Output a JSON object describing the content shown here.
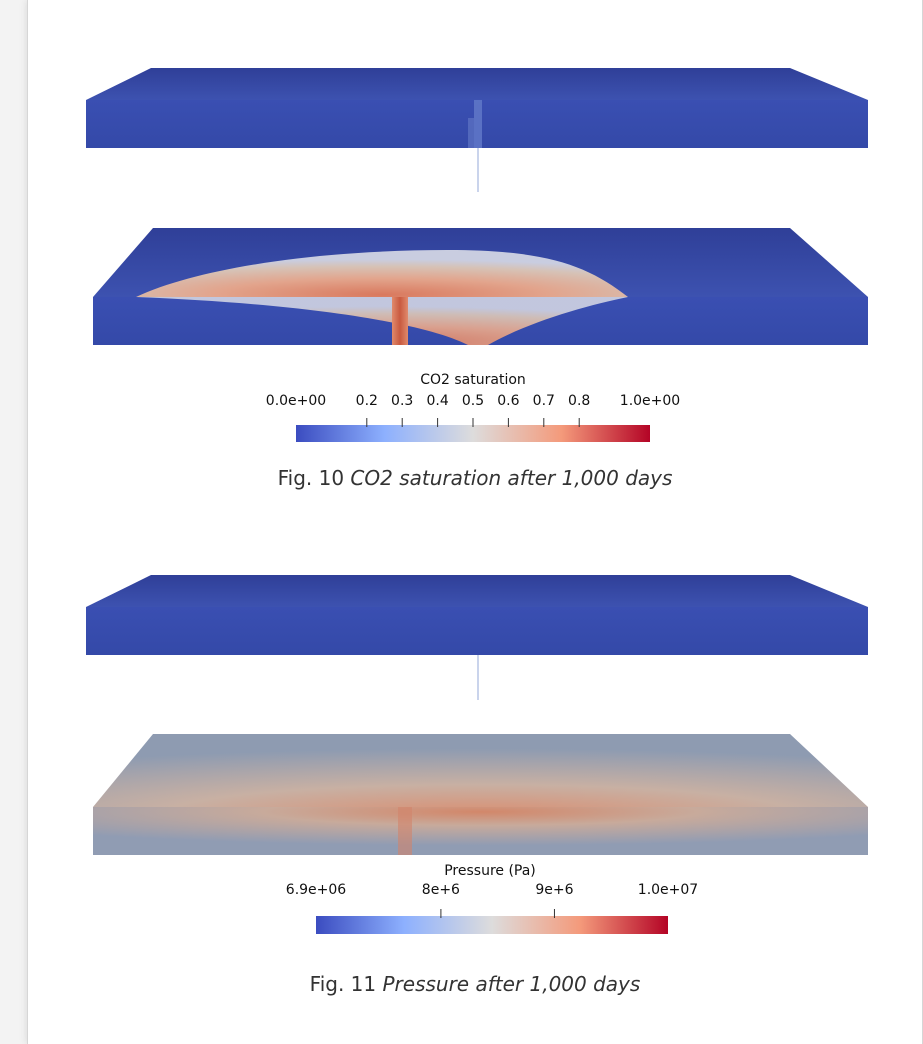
{
  "figure10": {
    "colorbar": {
      "title": "CO2 saturation",
      "ticks": [
        {
          "label": "0.0e+00",
          "value": 0.0
        },
        {
          "label": "0.2",
          "value": 0.2
        },
        {
          "label": "0.3",
          "value": 0.3
        },
        {
          "label": "0.4",
          "value": 0.4
        },
        {
          "label": "0.5",
          "value": 0.5
        },
        {
          "label": "0.6",
          "value": 0.6
        },
        {
          "label": "0.7",
          "value": 0.7
        },
        {
          "label": "0.8",
          "value": 0.8
        },
        {
          "label": "1.0e+00",
          "value": 1.0
        }
      ],
      "range": [
        0.0,
        1.0
      ]
    },
    "caption": {
      "label": "Fig. 10",
      "text": "CO2 saturation after 1,000 days"
    }
  },
  "figure11": {
    "colorbar": {
      "title": "Pressure (Pa)",
      "ticks": [
        {
          "label": "6.9e+06",
          "value": 6900000
        },
        {
          "label": "8e+6",
          "value": 8000000
        },
        {
          "label": "9e+6",
          "value": 9000000
        },
        {
          "label": "1.0e+07",
          "value": 10000000
        }
      ],
      "range": [
        6900000,
        10000000
      ]
    },
    "caption": {
      "label": "Fig. 11",
      "text": "Pressure after 1,000 days"
    }
  },
  "colors": {
    "low": "#3b4cc0",
    "mid": "#dddcdc",
    "high": "#b40426",
    "slab_blue": "#3447a6"
  }
}
